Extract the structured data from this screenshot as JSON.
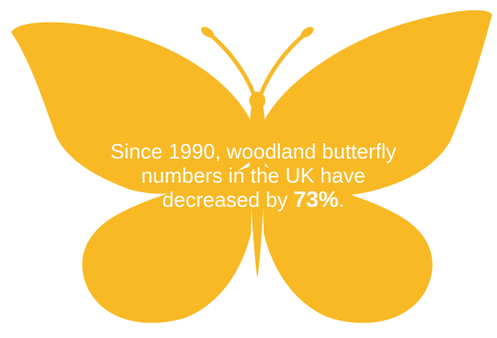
{
  "illustration": {
    "subject": "butterfly-icon",
    "fill_color": "#F8B925",
    "background_color": "#FFFFFF",
    "text_color": "#FFFFFF"
  },
  "statement": {
    "line1": "Since 1990, woodland butterfly",
    "line2": "numbers in the UK have",
    "line3_prefix": "decreased by ",
    "stat": "73%",
    "line3_suffix": "."
  }
}
